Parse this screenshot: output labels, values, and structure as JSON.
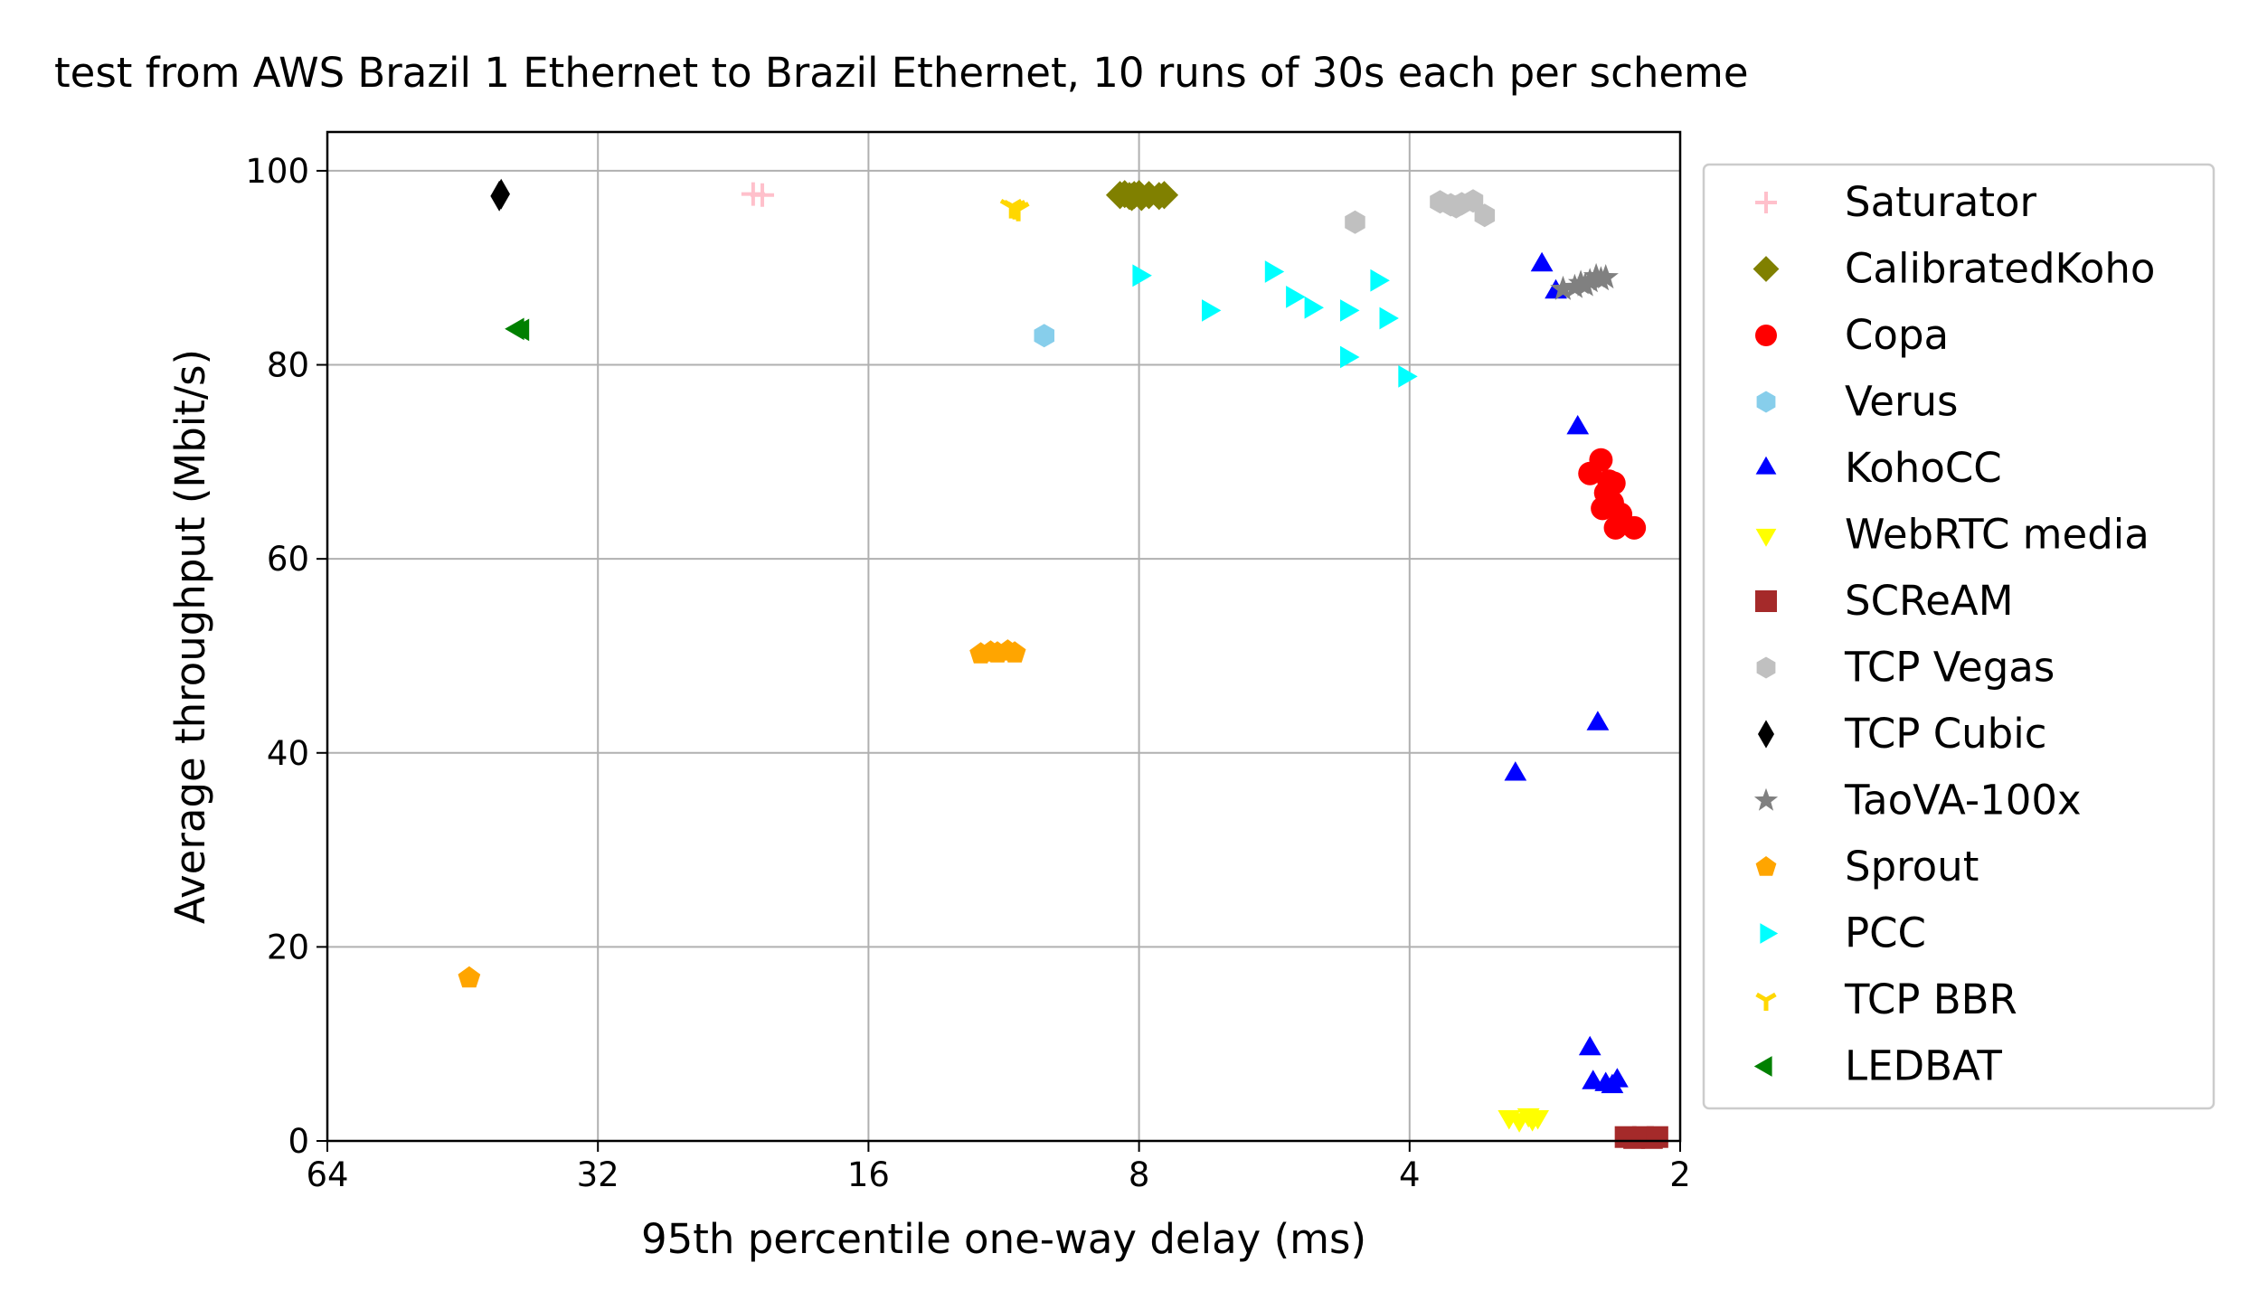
{
  "chart_data": {
    "type": "scatter",
    "title": "test from AWS Brazil 1 Ethernet to Brazil Ethernet, 10 runs of 30s each per scheme",
    "xlabel": "95th percentile one-way delay (ms)",
    "ylabel": "Average throughput (Mbit/s)",
    "x_scale": "log2",
    "x_inverted": true,
    "xlim": [
      64,
      2
    ],
    "ylim": [
      0,
      104
    ],
    "xticks": [
      64,
      32,
      16,
      8,
      4,
      2
    ],
    "xtick_labels": [
      "64",
      "32",
      "16",
      "8",
      "4",
      "2"
    ],
    "yticks": [
      0,
      20,
      40,
      60,
      80,
      100
    ],
    "ytick_labels": [
      "0",
      "20",
      "40",
      "60",
      "80",
      "100"
    ],
    "grid": true,
    "legend_position": "outside-right",
    "series": [
      {
        "name": "Saturator",
        "marker": "plus",
        "color": "#ffc0cb",
        "x": [
          21.5,
          21.0
        ],
        "y": [
          97.6,
          97.5
        ]
      },
      {
        "name": "CalibratedKoho",
        "marker": "diamond",
        "color": "#808000",
        "x": [
          8.4,
          8.3,
          8.2,
          8.1,
          8.0,
          7.95,
          7.8,
          7.6,
          7.5,
          8.15
        ],
        "y": [
          97.5,
          97.6,
          97.4,
          97.5,
          97.6,
          97.3,
          97.5,
          97.4,
          97.5,
          97.3
        ]
      },
      {
        "name": "Copa",
        "marker": "circle",
        "color": "#ff0000",
        "x": [
          2.52,
          2.45,
          2.37,
          2.42,
          2.44,
          2.38,
          2.36,
          2.25,
          2.4,
          2.33
        ],
        "y": [
          68.8,
          70.2,
          67.8,
          66.8,
          65.2,
          65.8,
          63.2,
          63.2,
          68.0,
          64.6
        ]
      },
      {
        "name": "Verus",
        "marker": "hexagon",
        "color": "#87ceeb",
        "x": [
          10.2
        ],
        "y": [
          83.0
        ]
      },
      {
        "name": "KohoCC",
        "marker": "triangle-up",
        "color": "#0000ff",
        "x": [
          2.85,
          2.75,
          2.6,
          2.47,
          3.05,
          2.52,
          2.5,
          2.42,
          2.35,
          2.38
        ],
        "y": [
          90.3,
          87.5,
          73.5,
          43.0,
          37.8,
          9.5,
          6.0,
          5.8,
          6.2,
          5.6
        ]
      },
      {
        "name": "WebRTC media",
        "marker": "triangle-down",
        "color": "#ffff00",
        "x": [
          3.1,
          3.02,
          2.95,
          2.88,
          2.92
        ],
        "y": [
          2.5,
          2.2,
          2.7,
          2.5,
          2.3
        ]
      },
      {
        "name": "SCReAM",
        "marker": "square",
        "color": "#a52a2a",
        "x": [
          2.3,
          2.25,
          2.2,
          2.15,
          2.12
        ],
        "y": [
          0.4,
          0.3,
          0.4,
          0.3,
          0.4
        ]
      },
      {
        "name": "TCP Vegas",
        "marker": "hexagon",
        "color": "#c0c0c0",
        "x": [
          4.6,
          3.7,
          3.6,
          3.5,
          3.4,
          3.3,
          3.55
        ],
        "y": [
          94.7,
          96.8,
          96.5,
          96.6,
          96.9,
          95.4,
          96.3
        ]
      },
      {
        "name": "TCP Cubic",
        "marker": "thin-diamond",
        "color": "#000000",
        "x": [
          41.0,
          41.2
        ],
        "y": [
          97.6,
          97.4
        ]
      },
      {
        "name": "TaoVA-100x",
        "marker": "star",
        "color": "#808080",
        "x": [
          2.7,
          2.62,
          2.58,
          2.52,
          2.48,
          2.42,
          2.45,
          2.55
        ],
        "y": [
          87.8,
          88.0,
          88.4,
          88.6,
          89.1,
          89.0,
          88.8,
          88.2
        ]
      },
      {
        "name": "Sprout",
        "marker": "pentagon",
        "color": "#ffa500",
        "x": [
          12.0,
          11.7,
          11.5,
          11.2,
          11.0,
          44.5
        ],
        "y": [
          50.2,
          50.4,
          50.3,
          50.5,
          50.3,
          16.8
        ]
      },
      {
        "name": "PCC",
        "marker": "triangle-right",
        "color": "#00ffff",
        "x": [
          8.0,
          6.7,
          5.7,
          5.4,
          5.15,
          4.7,
          4.35,
          4.25,
          4.7,
          4.05
        ],
        "y": [
          89.2,
          85.6,
          89.6,
          87.0,
          85.9,
          85.6,
          88.7,
          84.8,
          80.8,
          78.8
        ]
      },
      {
        "name": "TCP BBR",
        "marker": "tri-down",
        "color": "#ffd700",
        "x": [
          11.1,
          10.9,
          11.0
        ],
        "y": [
          96.3,
          96.0,
          96.2
        ]
      },
      {
        "name": "LEDBAT",
        "marker": "triangle-left",
        "color": "#008000",
        "x": [
          39.3,
          38.8
        ],
        "y": [
          83.7,
          83.6
        ]
      }
    ]
  }
}
